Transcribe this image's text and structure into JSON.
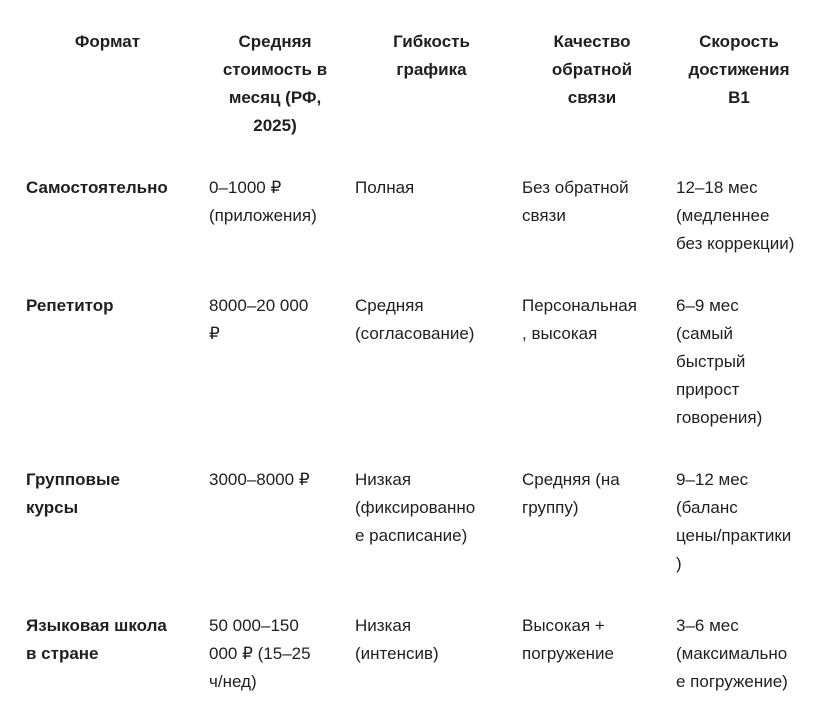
{
  "table": {
    "headers": [
      [
        "Формат"
      ],
      [
        "Средняя",
        "стоимость в",
        "месяц (РФ,",
        "2025)"
      ],
      [
        "Гибкость",
        "графика"
      ],
      [
        "Качество",
        "обратной",
        "связи"
      ],
      [
        "Скорость",
        "достижения",
        "B1"
      ]
    ],
    "rows": [
      [
        [
          "Самостоятельно"
        ],
        [
          "0–1000 ₽",
          "(приложения)"
        ],
        [
          "Полная"
        ],
        [
          "Без обратной",
          "связи"
        ],
        [
          "12–18 мес",
          "(медленнее",
          "без коррекции)"
        ]
      ],
      [
        [
          "Репетитор"
        ],
        [
          "8000–20 000",
          "₽"
        ],
        [
          "Средняя",
          "(согласование)"
        ],
        [
          "Персональная",
          ", высокая"
        ],
        [
          "6–9 мес",
          "(самый",
          "быстрый",
          "прирост",
          "говорения)"
        ]
      ],
      [
        [
          "Групповые",
          "курсы"
        ],
        [
          "3000–8000 ₽"
        ],
        [
          "Низкая",
          "(фиксированно",
          "е расписание)"
        ],
        [
          "Средняя (на",
          "группу)"
        ],
        [
          "9–12 мес",
          "(баланс",
          "цены/практики",
          ")"
        ]
      ],
      [
        [
          "Языковая школа",
          "в стране"
        ],
        [
          "50 000–150",
          "000 ₽ (15–25",
          "ч/нед)"
        ],
        [
          "Низкая",
          "(интенсив)"
        ],
        [
          "Высокая +",
          "погружение"
        ],
        [
          "3–6 мес",
          "(максимально",
          "е погружение)"
        ]
      ]
    ]
  }
}
